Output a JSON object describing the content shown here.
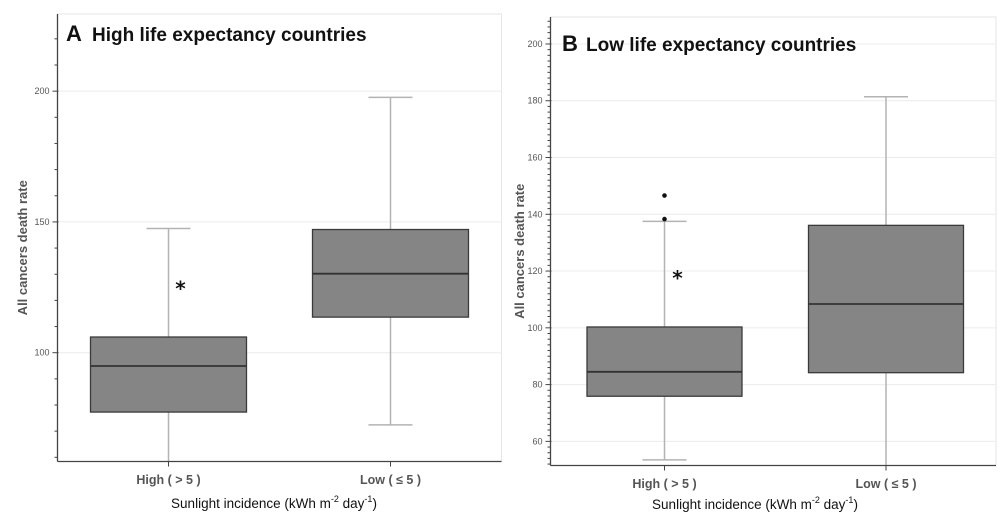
{
  "chart_data": [
    {
      "type": "boxplot",
      "panel_letter": "A",
      "title": "High life expectancy countries",
      "xlabel": "Sunlight incidence (kWh m-2 day-1)",
      "xlabel_parts": [
        "Sunlight incidence (kWh m",
        "-2",
        " day",
        "-1",
        ")"
      ],
      "ylabel": "All cancers death rate",
      "ylim": [
        58.4,
        229.5
      ],
      "yticks_major": [
        100,
        150,
        200
      ],
      "yticks_minor_step": 10,
      "grid": true,
      "categories": [
        "High ( > 5 )",
        "Low ( ≤ 5 )"
      ],
      "boxes": [
        {
          "category": "High ( > 5 )",
          "whisker_low": 58.4,
          "q1": 77.3,
          "median": 94.9,
          "q3": 106.0,
          "whisker_high": 147.5,
          "lower_whisker_clipped": true,
          "outliers": []
        },
        {
          "category": "Low ( ≤ 5 )",
          "whisker_low": 72.4,
          "q1": 113.6,
          "median": 130.2,
          "q3": 147.1,
          "whisker_high": 197.6,
          "lower_whisker_clipped": false,
          "outliers": []
        }
      ],
      "annotations": [
        {
          "text": "*",
          "near": "High ( > 5 )",
          "y": 126
        }
      ]
    },
    {
      "type": "boxplot",
      "panel_letter": "B",
      "title": "Low life expectancy countries",
      "xlabel": "Sunlight incidence (kWh m-2 day-1)",
      "xlabel_parts": [
        "Sunlight incidence (kWh m",
        "-2",
        " day",
        "-1",
        ")"
      ],
      "ylabel": "All cancers death rate",
      "ylim": [
        51.5,
        209.5
      ],
      "yticks_major": [
        60,
        80,
        100,
        120,
        140,
        160,
        180,
        200
      ],
      "yticks_minor_step": 2,
      "grid": true,
      "categories": [
        "High ( > 5 )",
        "Low ( ≤ 5 )"
      ],
      "boxes": [
        {
          "category": "High ( > 5 )",
          "whisker_low": 53.5,
          "q1": 75.9,
          "median": 84.5,
          "q3": 100.3,
          "whisker_high": 137.5,
          "lower_whisker_clipped": false,
          "outliers": [
            138.3,
            146.6
          ]
        },
        {
          "category": "Low ( ≤ 5 )",
          "whisker_low": 51.5,
          "q1": 84.2,
          "median": 108.4,
          "q3": 136.1,
          "whisker_high": 181.4,
          "lower_whisker_clipped": true,
          "outliers": []
        }
      ],
      "annotations": [
        {
          "text": "*",
          "near": "High ( > 5 )",
          "y": 119
        }
      ]
    }
  ]
}
